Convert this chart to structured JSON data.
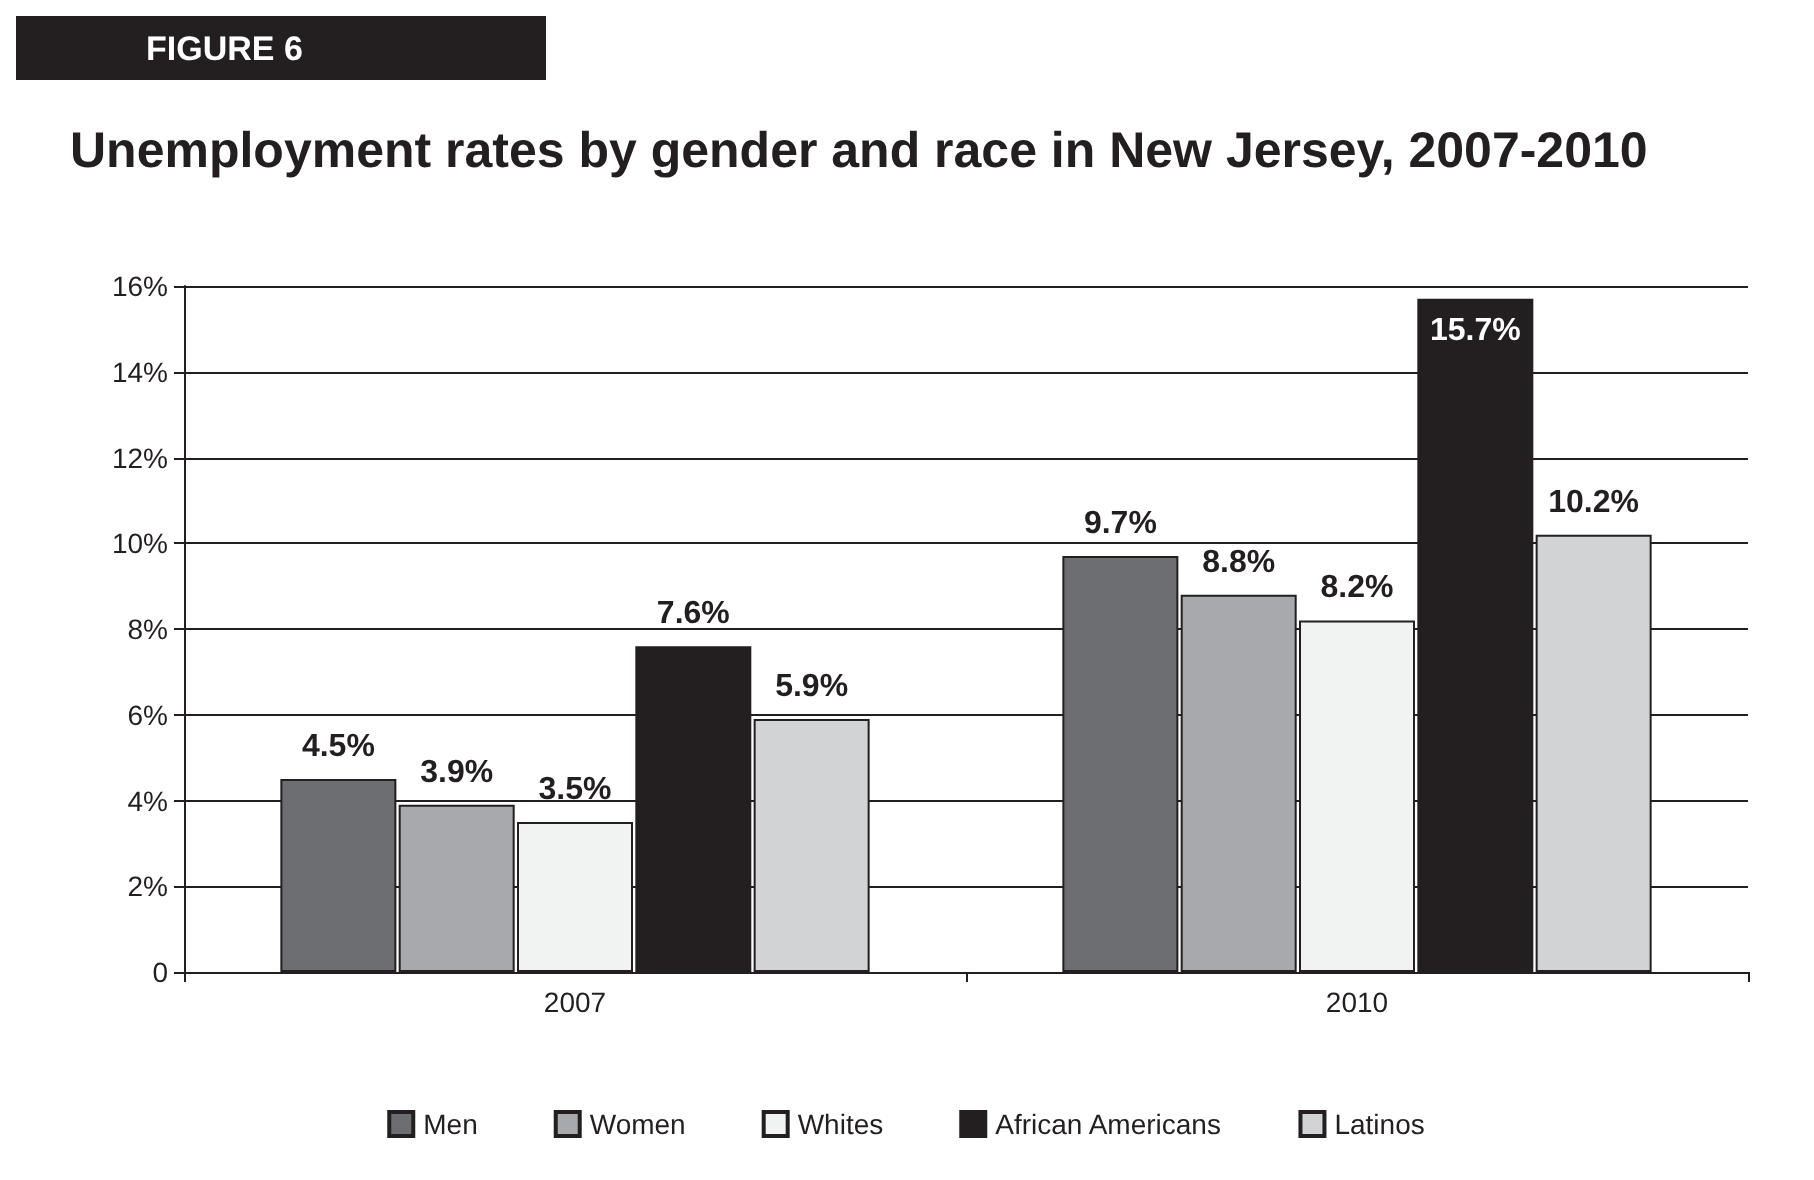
{
  "chart_data": {
    "type": "bar",
    "title": "Unemployment rates by gender and race in New Jersey, 2007-2010",
    "annotations": [
      "FIGURE 6"
    ],
    "categories": [
      "2007",
      "2010"
    ],
    "series": [
      {
        "name": "Men",
        "color": "#6d6e71",
        "values": [
          4.5,
          9.7
        ],
        "value_labels": [
          "4.5%",
          "9.7%"
        ]
      },
      {
        "name": "Women",
        "color": "#a7a9ac",
        "values": [
          3.9,
          8.8
        ],
        "value_labels": [
          "3.9%",
          "8.8%"
        ]
      },
      {
        "name": "Whites",
        "color": "#f1f2f2",
        "values": [
          3.5,
          8.2
        ],
        "value_labels": [
          "3.5%",
          "8.2%"
        ]
      },
      {
        "name": "African Americans",
        "color": "#231f20",
        "values": [
          7.6,
          15.7
        ],
        "value_labels": [
          "7.6%",
          "15.7%"
        ]
      },
      {
        "name": "Latinos",
        "color": "#d1d3d4",
        "values": [
          5.9,
          10.2
        ],
        "value_labels": [
          "5.9%",
          "10.2%"
        ]
      }
    ],
    "ylim": [
      0,
      16
    ],
    "yticks": [
      0,
      {
        "value": 2,
        "label": "2%"
      },
      {
        "value": 4,
        "label": "4%"
      },
      {
        "value": 6,
        "label": "6%"
      },
      {
        "value": 8,
        "label": "8%"
      },
      {
        "value": 10,
        "label": "10%"
      },
      {
        "value": 12,
        "label": "12%"
      },
      {
        "value": 14,
        "label": "14%"
      },
      {
        "value": 16,
        "label": "16%"
      }
    ],
    "grid": "y",
    "legend": "bottom"
  }
}
